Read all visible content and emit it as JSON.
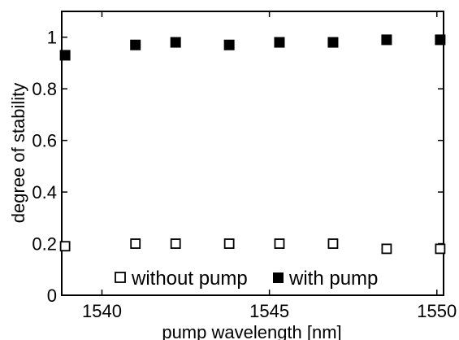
{
  "chart_data": {
    "type": "scatter",
    "xlabel": "pump wavelength [nm]",
    "ylabel": "degree of stability",
    "xlim": [
      1538.8,
      1550.2
    ],
    "ylim": [
      0,
      1.1
    ],
    "xticks": [
      1540,
      1545,
      1550
    ],
    "xtick_labels": [
      "1540",
      "1545",
      "1550"
    ],
    "yticks": [
      0,
      0.2,
      0.4,
      0.6,
      0.8,
      1
    ],
    "ytick_labels": [
      "0",
      "0.2",
      "0.4",
      "0.6",
      "0.8",
      "1"
    ],
    "grid": false,
    "legend_position": "bottom",
    "series": [
      {
        "name": "without pump",
        "marker": "open-square",
        "color": "#000000",
        "x": [
          1538.9,
          1541.0,
          1542.2,
          1543.8,
          1545.3,
          1546.9,
          1548.5,
          1550.1
        ],
        "values": [
          0.19,
          0.2,
          0.2,
          0.2,
          0.2,
          0.2,
          0.18,
          0.18
        ]
      },
      {
        "name": "with pump",
        "marker": "filled-square",
        "color": "#000000",
        "x": [
          1538.9,
          1541.0,
          1542.2,
          1543.8,
          1545.3,
          1546.9,
          1548.5,
          1550.1
        ],
        "values": [
          0.93,
          0.97,
          0.98,
          0.97,
          0.98,
          0.98,
          0.99,
          0.99
        ]
      }
    ]
  }
}
